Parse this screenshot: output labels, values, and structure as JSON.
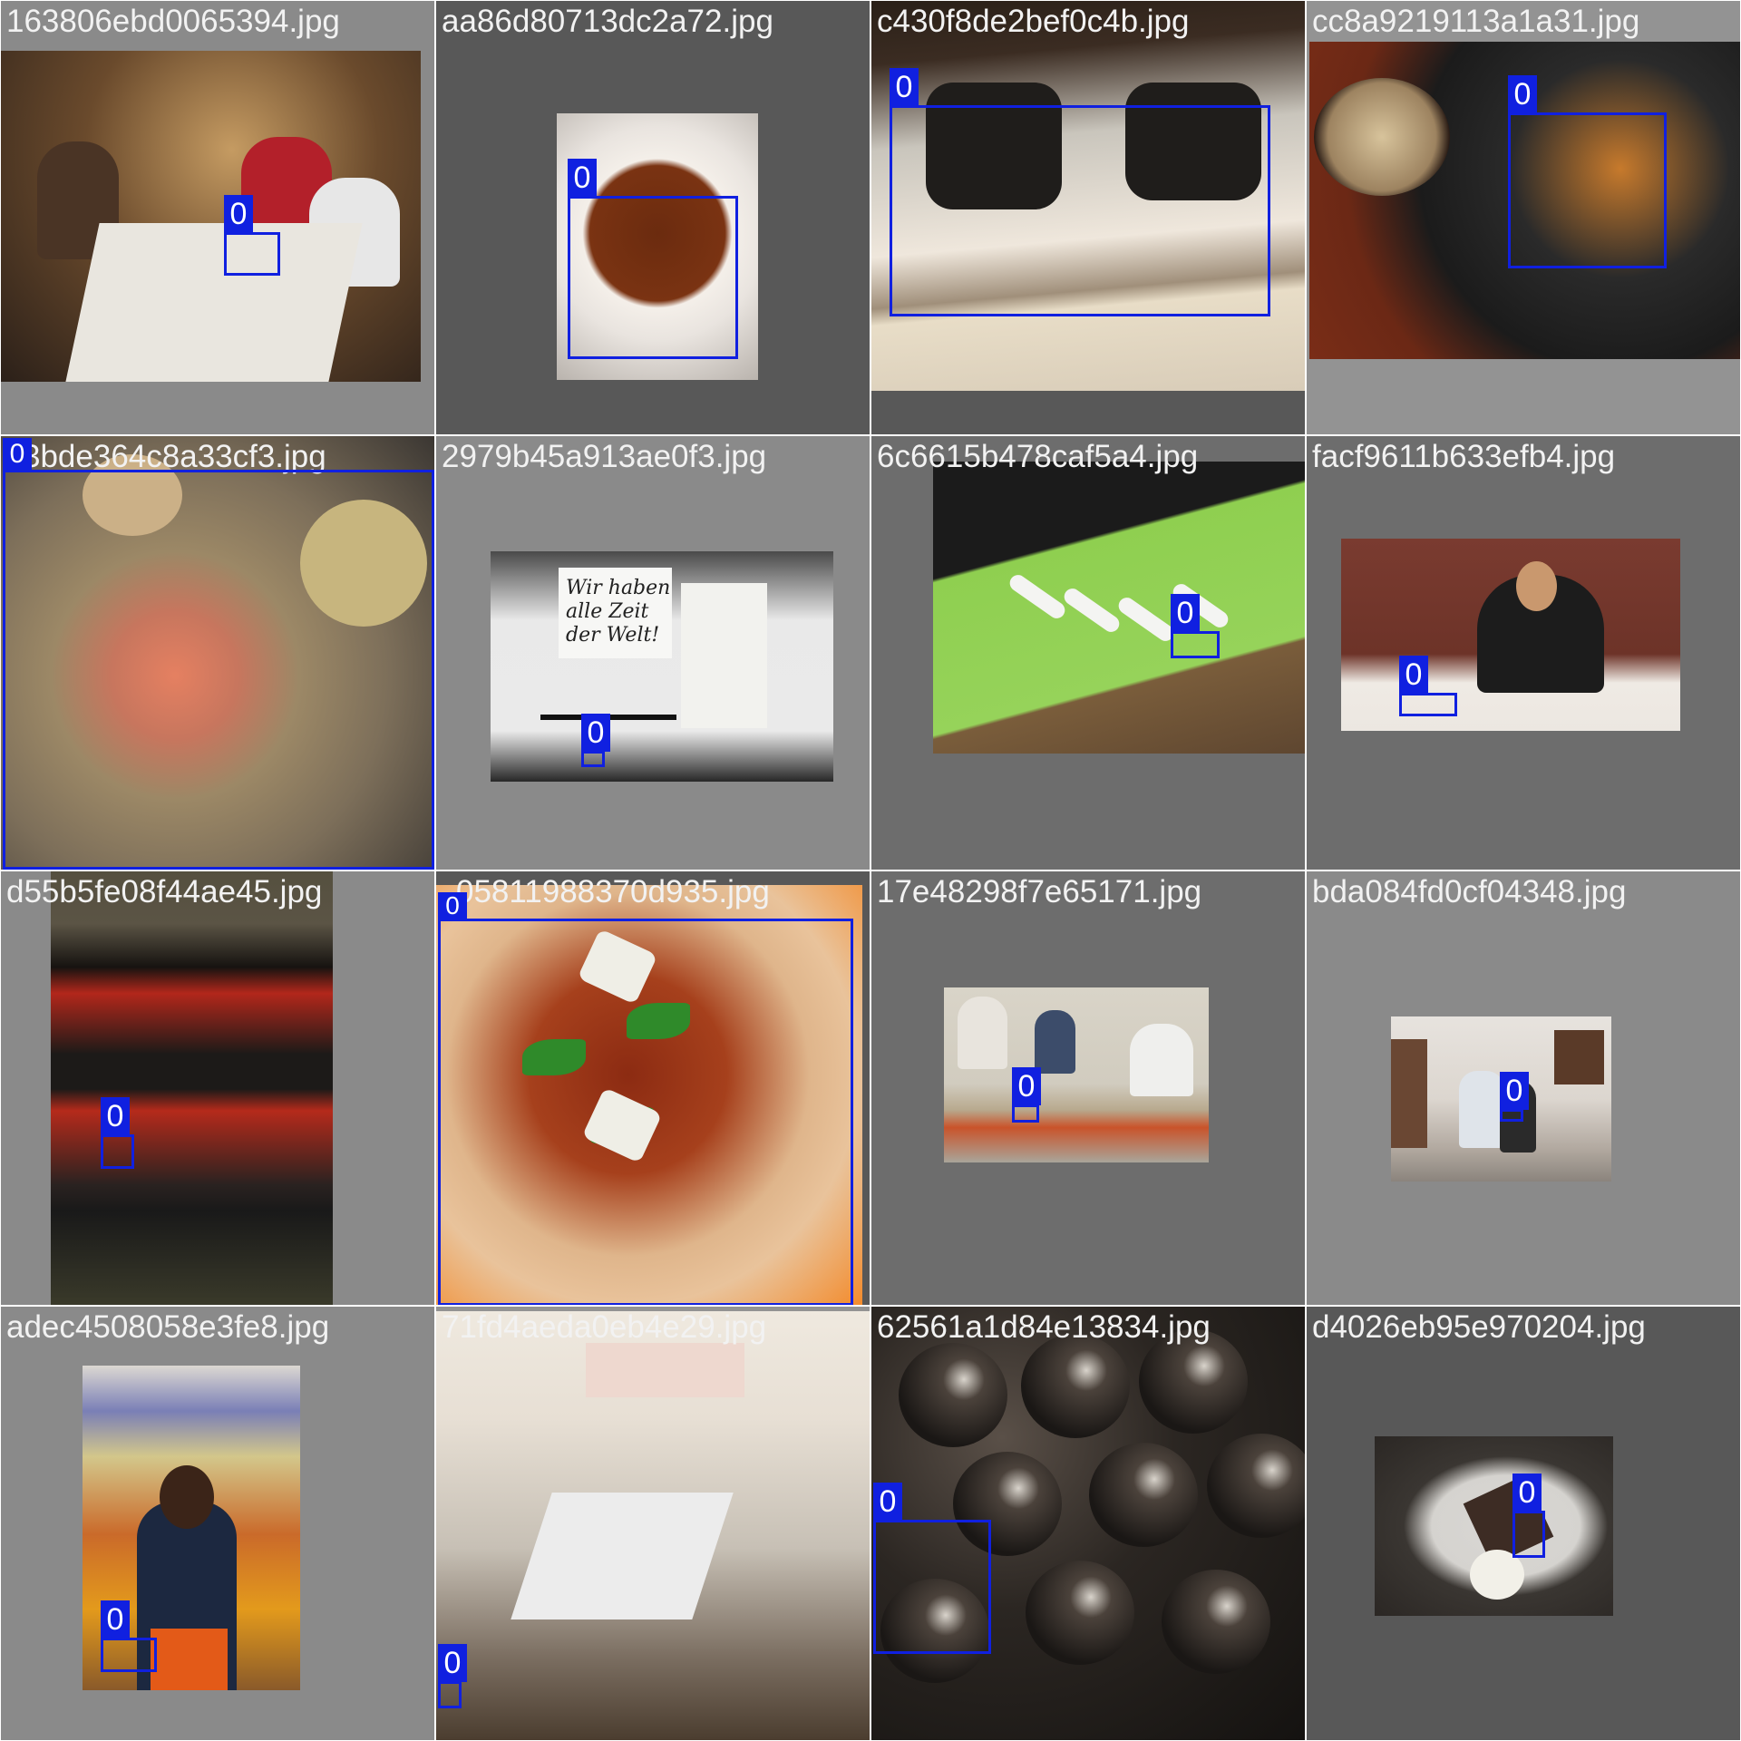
{
  "grid": {
    "tiles": [
      {
        "filename": "163806ebd0065394.jpg",
        "box_label": "0"
      },
      {
        "filename": "aa86d80713dc2a72.jpg",
        "box_label": "0"
      },
      {
        "filename": "c430f8de2bef0c4b.jpg",
        "box_label": "0"
      },
      {
        "filename": "cc8a9219113a1a31.jpg",
        "box_label": "0"
      },
      {
        "filename": "3bde364c8a33cf3.jpg",
        "box_label": "0"
      },
      {
        "filename": "2979b45a913ae0f3.jpg",
        "box_label": "0"
      },
      {
        "filename": "6c6615b478caf5a4.jpg",
        "box_label": "0"
      },
      {
        "filename": "facf9611b633efb4.jpg",
        "box_label": "0"
      },
      {
        "filename": "d55b5fe08f44ae45.jpg",
        "box_label": "0"
      },
      {
        "filename": "05811988370d935.jpg",
        "box_label": "0"
      },
      {
        "filename": "17e48298f7e65171.jpg",
        "box_label": "0"
      },
      {
        "filename": "bda084fd0cf04348.jpg",
        "box_label": "0"
      },
      {
        "filename": "adec4508058e3fe8.jpg",
        "box_label": "0"
      },
      {
        "filename": "71fd4aeda0eb4e29.jpg",
        "box_label": "0"
      },
      {
        "filename": "62561a1d84e13834.jpg",
        "box_label": "0"
      },
      {
        "filename": "d4026eb95e970204.jpg",
        "box_label": "0"
      }
    ]
  },
  "photo_text": {
    "wall_sign": "Wir haben alle Zeit der Welt!"
  },
  "colors": {
    "bbox": "#1020e0",
    "label_text": "#f2f2f2"
  }
}
